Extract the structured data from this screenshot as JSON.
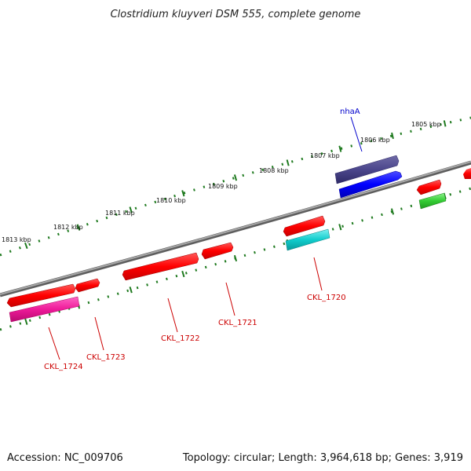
{
  "title": "Clostridium kluyveri DSM 555, complete genome",
  "footer": {
    "accession": "Accession: NC_009706",
    "summary": "Topology: circular; Length: 3,964,618 bp; Genes: 3,919"
  },
  "colors": {
    "backbone": "#8a8a8a",
    "tick": "#1f7a1f",
    "label_red": "#cc0000",
    "label_blue": "#0000cc"
  },
  "kbp_labels": [
    "1805 kbp",
    "1806 kbp",
    "1807 kbp",
    "1808 kbp",
    "1809 kbp",
    "1810 kbp",
    "1811 kbp",
    "1812 kbp",
    "1813 kbp"
  ],
  "genes": [
    {
      "name": "nhaA",
      "color": "#0000cc"
    },
    {
      "name": "CKL_1720",
      "color": "#cc0000"
    },
    {
      "name": "CKL_1721",
      "color": "#cc0000"
    },
    {
      "name": "CKL_1722",
      "color": "#cc0000"
    },
    {
      "name": "CKL_1723",
      "color": "#cc0000"
    },
    {
      "name": "CKL_1724",
      "color": "#cc0000"
    }
  ]
}
